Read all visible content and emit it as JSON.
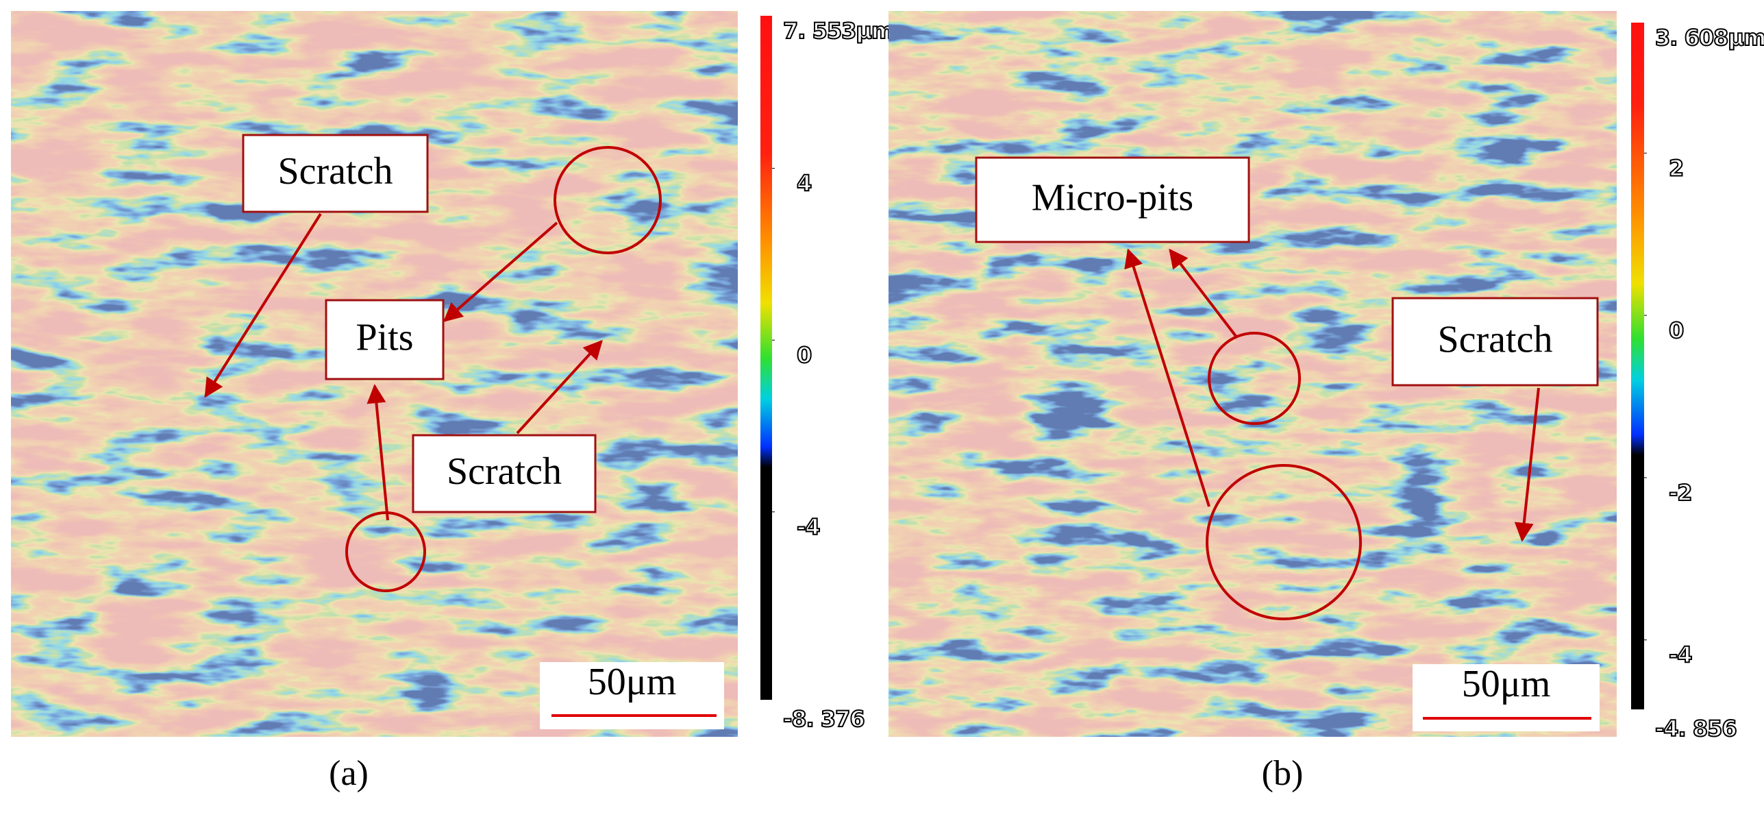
{
  "panels": [
    {
      "label": "(a)",
      "annotations": [
        "Scratch",
        "Pits",
        "Scratch"
      ],
      "scale_bar": "50μm",
      "colorbar": {
        "max": {
          "value": 7.553,
          "label": "7. 553μm"
        },
        "min": {
          "value": -8.376,
          "label": "-8. 376"
        },
        "ticks": [
          4,
          0,
          -4
        ]
      }
    },
    {
      "label": "(b)",
      "annotations": [
        "Micro-pits",
        "Scratch"
      ],
      "scale_bar": "50μm",
      "colorbar": {
        "max": {
          "value": 3.608,
          "label": "3. 608μm"
        },
        "min": {
          "value": -4.856,
          "label": "-4. 856"
        },
        "ticks": [
          2,
          0,
          -2,
          -4
        ]
      }
    }
  ]
}
